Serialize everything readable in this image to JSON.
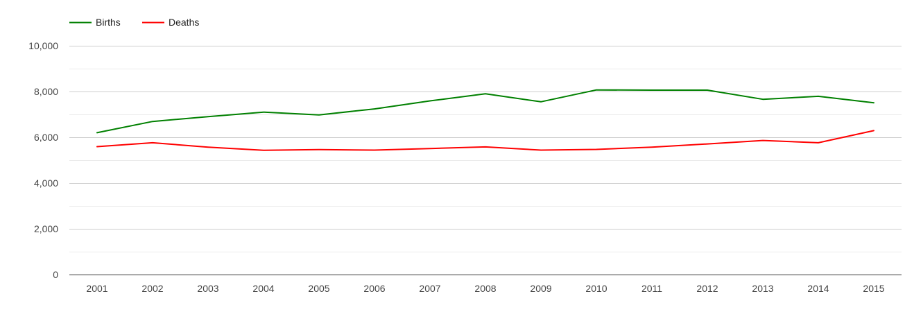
{
  "chart_data": {
    "type": "line",
    "title": "",
    "xlabel": "",
    "ylabel": "",
    "categories": [
      "2001",
      "2002",
      "2003",
      "2004",
      "2005",
      "2006",
      "2007",
      "2008",
      "2009",
      "2010",
      "2011",
      "2012",
      "2013",
      "2014",
      "2015"
    ],
    "series": [
      {
        "name": "Births",
        "color": "#008000",
        "values": [
          6200,
          6690,
          6900,
          7100,
          6980,
          7240,
          7590,
          7900,
          7550,
          8070,
          8060,
          8060,
          7660,
          7790,
          7510
        ]
      },
      {
        "name": "Deaths",
        "color": "#ff0000",
        "values": [
          5590,
          5760,
          5570,
          5430,
          5460,
          5440,
          5510,
          5580,
          5440,
          5470,
          5570,
          5710,
          5860,
          5760,
          6290
        ]
      }
    ],
    "ylim": [
      0,
      10000
    ],
    "yticks": [
      "0",
      "2,000",
      "4,000",
      "6,000",
      "8,000",
      "10,000"
    ],
    "ytick_values": [
      0,
      2000,
      4000,
      6000,
      8000,
      10000
    ],
    "grid": true,
    "minor_grid": true,
    "legend": {
      "position": "top-left",
      "entries": [
        "Births",
        "Deaths"
      ]
    }
  }
}
